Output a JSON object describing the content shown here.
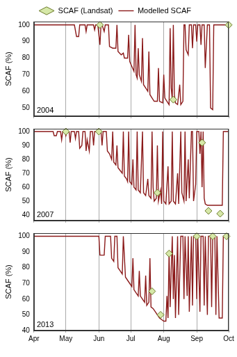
{
  "chart_data": [
    {
      "type": "line",
      "legend": "top",
      "annotation": "2004",
      "y_label": "SCAF (%)",
      "xlim": [
        0,
        183
      ],
      "xticks": [
        {
          "value": 0,
          "label": "Apr"
        },
        {
          "value": 30,
          "label": "May"
        },
        {
          "value": 61,
          "label": "Jun"
        },
        {
          "value": 91,
          "label": "Jul"
        },
        {
          "value": 122,
          "label": "Aug"
        },
        {
          "value": 153,
          "label": "Sep"
        },
        {
          "value": 183,
          "label": "Oct"
        }
      ],
      "ylim": [
        45,
        102
      ],
      "yticks": [
        50,
        60,
        70,
        80,
        90,
        100
      ],
      "grid": "x",
      "tick_labels": "y",
      "series": [
        {
          "name": "Modelled SCAF",
          "type": "line",
          "color": "#8b1a1a",
          "marker": "none",
          "x": [
            0,
            38,
            40,
            42,
            43,
            48,
            49,
            50,
            56,
            57,
            58,
            60,
            62,
            63,
            64,
            66,
            67,
            70,
            71,
            74,
            77,
            78,
            79,
            82,
            84,
            85,
            88,
            89,
            90,
            92,
            94,
            95,
            96,
            97,
            98,
            99,
            101,
            102,
            103,
            105,
            107,
            108,
            109,
            111,
            113,
            116,
            117,
            118,
            121,
            122,
            123,
            125,
            127,
            128,
            129,
            130,
            131,
            132,
            133,
            135,
            137,
            138,
            140,
            141,
            142,
            143,
            145,
            146,
            148,
            149,
            150,
            152,
            153,
            154,
            156,
            157,
            158,
            160,
            161,
            163,
            165,
            166,
            168,
            169,
            183
          ],
          "values": [
            100,
            100,
            93,
            93,
            100,
            100,
            96,
            100,
            100,
            97,
            100,
            100,
            88,
            100,
            100,
            96,
            100,
            100,
            87,
            86,
            86,
            100,
            84,
            82,
            83,
            80,
            80,
            94,
            78,
            75,
            72,
            100,
            70,
            68,
            86,
            70,
            66,
            92,
            64,
            62,
            60,
            84,
            58,
            56,
            54,
            54,
            74,
            54,
            53,
            70,
            56,
            54,
            52,
            98,
            62,
            55,
            100,
            58,
            53,
            52,
            64,
            52,
            54,
            100,
            100,
            85,
            82,
            100,
            100,
            86,
            100,
            100,
            90,
            100,
            100,
            88,
            100,
            100,
            74,
            100,
            100,
            50,
            49,
            100,
            100
          ]
        },
        {
          "name": "SCAF (Landsat)",
          "type": "scatter",
          "color": "#d6e8a8",
          "marker": "diamond",
          "x": [
            62,
            131,
            183
          ],
          "values": [
            100,
            55,
            100
          ]
        }
      ]
    },
    {
      "type": "line",
      "annotation": "2007",
      "y_label": "SCAF (%)",
      "xlim": [
        0,
        183
      ],
      "xticks": [
        {
          "value": 0,
          "label": "Apr"
        },
        {
          "value": 30,
          "label": "May"
        },
        {
          "value": 61,
          "label": "Jun"
        },
        {
          "value": 91,
          "label": "Jul"
        },
        {
          "value": 122,
          "label": "Aug"
        },
        {
          "value": 153,
          "label": "Sep"
        },
        {
          "value": 183,
          "label": "Oct"
        }
      ],
      "ylim": [
        36,
        102
      ],
      "yticks": [
        40,
        50,
        60,
        70,
        80,
        90,
        100
      ],
      "grid": "x",
      "tick_labels": "y",
      "series": [
        {
          "type": "line",
          "color": "#8b1a1a",
          "marker": "none",
          "x": [
            0,
            18,
            19,
            21,
            22,
            25,
            26,
            27,
            29,
            30,
            31,
            33,
            34,
            35,
            38,
            39,
            40,
            42,
            43,
            45,
            46,
            48,
            49,
            50,
            52,
            53,
            55,
            56,
            57,
            60,
            63,
            64,
            65,
            68,
            69,
            71,
            73,
            74,
            75,
            77,
            78,
            79,
            81,
            83,
            84,
            85,
            87,
            88,
            89,
            90,
            92,
            93,
            94,
            96,
            97,
            98,
            100,
            102,
            103,
            105,
            107,
            108,
            110,
            111,
            112,
            113,
            115,
            116,
            117,
            119,
            120,
            121,
            122,
            124,
            126,
            127,
            129,
            130,
            131,
            133,
            135,
            136,
            138,
            139,
            141,
            142,
            143,
            145,
            146,
            148,
            149,
            150,
            152,
            153,
            155,
            156,
            157,
            158,
            159,
            160,
            161,
            163,
            177,
            178,
            183
          ],
          "values": [
            100,
            100,
            97,
            97,
            100,
            100,
            94,
            100,
            100,
            97,
            100,
            100,
            92,
            100,
            100,
            95,
            100,
            100,
            88,
            90,
            100,
            100,
            86,
            94,
            86,
            100,
            100,
            90,
            100,
            100,
            100,
            90,
            100,
            100,
            86,
            84,
            80,
            100,
            78,
            76,
            90,
            74,
            72,
            70,
            100,
            68,
            66,
            64,
            100,
            64,
            62,
            80,
            60,
            58,
            100,
            58,
            56,
            100,
            56,
            54,
            66,
            54,
            52,
            100,
            60,
            50,
            52,
            90,
            50,
            58,
            48,
            100,
            50,
            48,
            75,
            48,
            50,
            100,
            50,
            48,
            70,
            48,
            100,
            56,
            50,
            100,
            50,
            80,
            52,
            100,
            100,
            50,
            62,
            100,
            100,
            84,
            100,
            60,
            100,
            52,
            48,
            47,
            47,
            100,
            100
          ]
        },
        {
          "type": "scatter",
          "color": "#d6e8a8",
          "marker": "diamond",
          "x": [
            30,
            61,
            116,
            158,
            164,
            175
          ],
          "values": [
            100,
            100,
            56,
            92,
            43,
            41
          ]
        }
      ]
    },
    {
      "type": "line",
      "annotation": "2013",
      "y_label": "SCAF (%)",
      "xlim": [
        0,
        183
      ],
      "xticks": [
        {
          "value": 0,
          "label": "Apr"
        },
        {
          "value": 30,
          "label": "May"
        },
        {
          "value": 61,
          "label": "Jun"
        },
        {
          "value": 91,
          "label": "Jul"
        },
        {
          "value": 122,
          "label": "Aug"
        },
        {
          "value": 153,
          "label": "Sep"
        },
        {
          "value": 183,
          "label": "Oct"
        }
      ],
      "ylim": [
        40,
        102
      ],
      "yticks": [
        40,
        50,
        60,
        70,
        80,
        90,
        100
      ],
      "grid": "x",
      "series": [
        {
          "type": "line",
          "color": "#8b1a1a",
          "marker": "none",
          "x": [
            0,
            61,
            62,
            66,
            67,
            72,
            73,
            75,
            76,
            78,
            79,
            81,
            83,
            84,
            86,
            88,
            90,
            92,
            93,
            94,
            96,
            98,
            99,
            100,
            102,
            104,
            105,
            106,
            108,
            109,
            110,
            112,
            114,
            116,
            118,
            120,
            122,
            124,
            125,
            126,
            127,
            128,
            130,
            131,
            132,
            133,
            135,
            136,
            138,
            140,
            141,
            142,
            144,
            145,
            146,
            148,
            149,
            150,
            152,
            153,
            154,
            156,
            157,
            159,
            160,
            161,
            163,
            164,
            166,
            167,
            168,
            170,
            171,
            172,
            174,
            177,
            178,
            183
          ],
          "values": [
            100,
            100,
            88,
            88,
            100,
            100,
            86,
            84,
            100,
            100,
            80,
            78,
            76,
            100,
            74,
            72,
            70,
            68,
            86,
            66,
            64,
            62,
            78,
            62,
            60,
            58,
            75,
            56,
            58,
            86,
            55,
            54,
            52,
            50,
            48,
            47,
            46,
            46,
            62,
            48,
            90,
            55,
            100,
            60,
            88,
            48,
            100,
            50,
            100,
            100,
            60,
            100,
            62,
            100,
            52,
            100,
            56,
            100,
            100,
            60,
            100,
            52,
            100,
            100,
            56,
            100,
            50,
            100,
            100,
            55,
            100,
            100,
            50,
            100,
            48,
            48,
            100,
            100
          ]
        },
        {
          "type": "scatter",
          "color": "#d6e8a8",
          "marker": "diamond",
          "x": [
            111,
            119,
            127,
            153,
            168,
            181
          ],
          "values": [
            65,
            50,
            89,
            100,
            100,
            100
          ]
        }
      ]
    }
  ]
}
